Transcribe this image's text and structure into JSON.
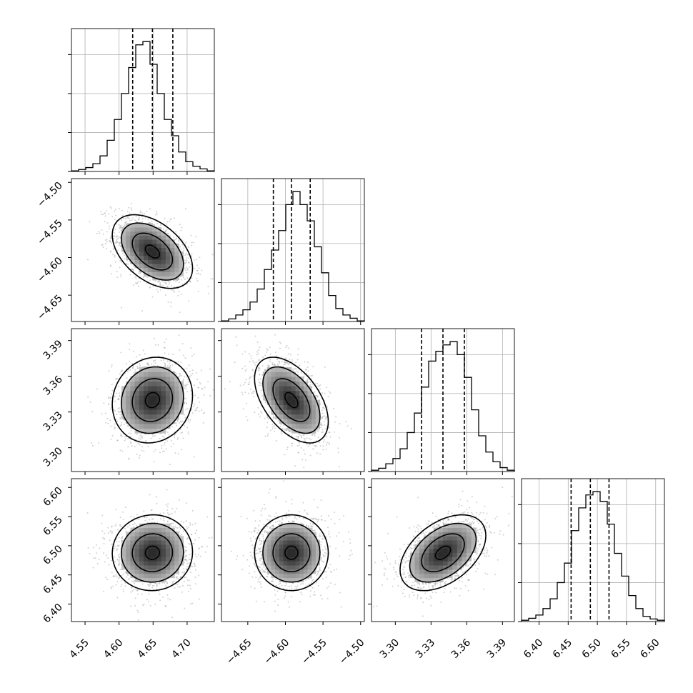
{
  "chart_data": {
    "type": "corner",
    "parameters": [
      {
        "range": [
          4.53,
          4.74
        ],
        "ticks": [
          4.55,
          4.6,
          4.65,
          4.7
        ],
        "tick_labels": [
          "4.55",
          "4.60",
          "4.65",
          "4.70"
        ]
      },
      {
        "range": [
          -4.685,
          -4.495
        ],
        "ticks": [
          -4.65,
          -4.6,
          -4.55,
          -4.5
        ],
        "tick_labels": [
          "−4.65",
          "−4.60",
          "−4.55",
          "−4.50"
        ]
      },
      {
        "range": [
          3.28,
          3.4
        ],
        "ticks": [
          3.3,
          3.33,
          3.36,
          3.39
        ],
        "tick_labels": [
          "3.30",
          "3.33",
          "3.36",
          "3.39"
        ]
      },
      {
        "range": [
          6.37,
          6.615
        ],
        "ticks": [
          6.4,
          6.45,
          6.5,
          6.55,
          6.6
        ],
        "tick_labels": [
          "6.40",
          "6.45",
          "6.50",
          "6.55",
          "6.60"
        ]
      }
    ],
    "marginals": [
      {
        "quantiles": [
          4.62,
          4.649,
          4.679
        ],
        "bin_edges_start": 4.53,
        "bin_width": 0.0105,
        "counts": [
          1,
          3,
          6,
          12,
          24,
          48,
          80,
          120,
          160,
          195,
          200,
          165,
          120,
          80,
          55,
          30,
          15,
          8,
          4,
          1
        ]
      },
      {
        "quantiles": [
          -4.616,
          -4.592,
          -4.567
        ],
        "bin_edges_start": -4.685,
        "bin_width": 0.0095,
        "counts": [
          1,
          4,
          10,
          18,
          30,
          50,
          80,
          110,
          140,
          180,
          200,
          180,
          155,
          115,
          75,
          40,
          20,
          10,
          5,
          1
        ]
      },
      {
        "quantiles": [
          3.322,
          3.34,
          3.358
        ],
        "bin_edges_start": 3.28,
        "bin_width": 0.006,
        "counts": [
          2,
          5,
          12,
          20,
          35,
          60,
          90,
          130,
          170,
          185,
          195,
          200,
          180,
          145,
          95,
          55,
          30,
          15,
          6,
          2
        ]
      },
      {
        "quantiles": [
          6.455,
          6.488,
          6.52
        ],
        "bin_edges_start": 6.37,
        "bin_width": 0.01225,
        "counts": [
          2,
          5,
          10,
          20,
          35,
          60,
          90,
          140,
          175,
          195,
          200,
          185,
          150,
          105,
          70,
          40,
          20,
          8,
          4,
          2
        ]
      }
    ],
    "correlations": [
      {
        "x": 0,
        "y": 1,
        "rho": -0.45
      },
      {
        "x": 0,
        "y": 2,
        "rho": 0.1
      },
      {
        "x": 1,
        "y": 2,
        "rho": -0.5
      },
      {
        "x": 0,
        "y": 3,
        "rho": 0.02
      },
      {
        "x": 1,
        "y": 3,
        "rho": 0.0
      },
      {
        "x": 2,
        "y": 3,
        "rho": 0.45
      }
    ],
    "quantile_style": "dashed",
    "grid": true
  }
}
